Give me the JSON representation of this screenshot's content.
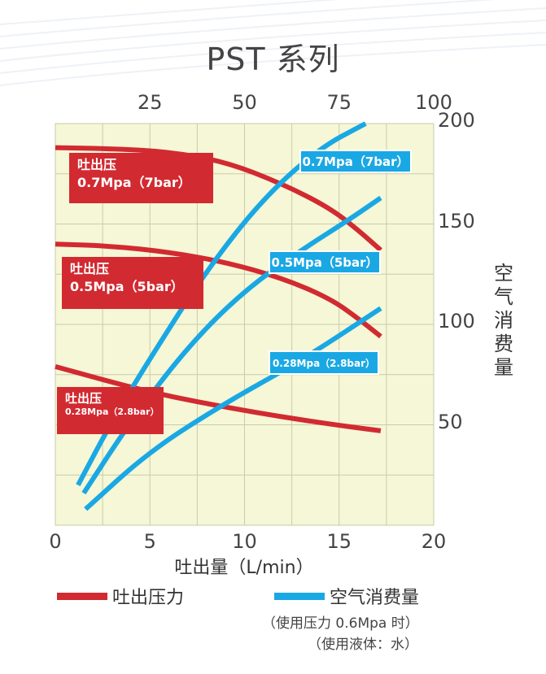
{
  "title": "PST 系列",
  "chart_data": {
    "type": "line",
    "title": "PST 系列",
    "xlabel": "吐出量（L/min）",
    "xlim": [
      0,
      20
    ],
    "x_ticks": [
      "0",
      "5",
      "10",
      "15",
      "20"
    ],
    "x2_ticks": [
      "25",
      "50",
      "75",
      "100"
    ],
    "x2_tick_positions": [
      5,
      10,
      15,
      20
    ],
    "ylabel_right": "空气消费量",
    "y_right_ticks": [
      "200",
      "150",
      "100",
      "50"
    ],
    "y_right_range": [
      0,
      200
    ],
    "grid": true,
    "legend_position": "bottom",
    "series": [
      {
        "group": "吐出压力",
        "label_title": "吐出压",
        "label_value": "0.7Mpa（7bar）",
        "color": "#d22a31",
        "points": [
          [
            0,
            188
          ],
          [
            3,
            187.5
          ],
          [
            6,
            186
          ],
          [
            9,
            181
          ],
          [
            12,
            170
          ],
          [
            14.5,
            158
          ],
          [
            16,
            147
          ],
          [
            17.2,
            137
          ]
        ]
      },
      {
        "group": "吐出压力",
        "label_title": "吐出压",
        "label_value": "0.5Mpa（5bar）",
        "color": "#d22a31",
        "points": [
          [
            0,
            140
          ],
          [
            3,
            139
          ],
          [
            6,
            136
          ],
          [
            9,
            131
          ],
          [
            12,
            123
          ],
          [
            14.5,
            113
          ],
          [
            16,
            103
          ],
          [
            17.2,
            94
          ]
        ]
      },
      {
        "group": "吐出压力",
        "label_title": "吐出压",
        "label_value": "0.28Mpa（2.8bar）",
        "color": "#d22a31",
        "points": [
          [
            0,
            79
          ],
          [
            5,
            66
          ],
          [
            10,
            57
          ],
          [
            14,
            51
          ],
          [
            17.2,
            47
          ]
        ]
      },
      {
        "group": "空气消费量",
        "label_value": "0.7Mpa（7bar）",
        "color": "#1aa8e4",
        "points": [
          [
            1.2,
            20
          ],
          [
            3,
            52
          ],
          [
            5,
            83
          ],
          [
            8,
            127
          ],
          [
            11,
            163
          ],
          [
            14,
            188
          ],
          [
            16.4,
            200
          ]
        ]
      },
      {
        "group": "空气消费量",
        "label_value": "0.5Mpa（5bar）",
        "color": "#1aa8e4",
        "points": [
          [
            1.5,
            16
          ],
          [
            4,
            52
          ],
          [
            7,
            89
          ],
          [
            10,
            117
          ],
          [
            13,
            137
          ],
          [
            15.5,
            152
          ],
          [
            17.2,
            163
          ]
        ]
      },
      {
        "group": "空气消费量",
        "label_value": "0.28Mpa（2.8bar）",
        "color": "#1aa8e4",
        "points": [
          [
            1.6,
            8
          ],
          [
            5,
            37
          ],
          [
            9,
            61
          ],
          [
            13,
            82
          ],
          [
            17.2,
            108
          ]
        ]
      }
    ],
    "legend": [
      {
        "label": "吐出压力",
        "color": "#d22a31"
      },
      {
        "label": "空气消费量",
        "color": "#1aa8e4"
      }
    ],
    "notes": [
      "（使用压力 0.6Mpa 时）",
      "（使用液体：水）"
    ]
  }
}
